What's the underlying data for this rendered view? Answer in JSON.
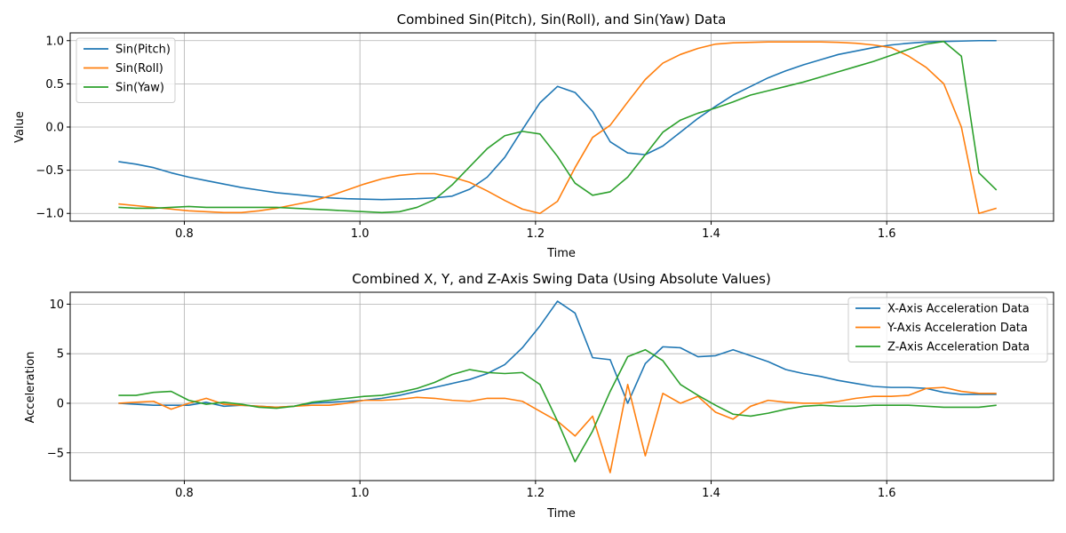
{
  "colors": {
    "blue": "#1f77b4",
    "orange": "#ff7f0e",
    "green": "#2ca02c"
  },
  "chart_data": [
    {
      "type": "line",
      "title": "Combined Sin(Pitch), Sin(Roll), and Sin(Yaw) Data",
      "xlabel": "Time",
      "ylabel": "Value",
      "xlim": [
        0.67,
        1.79
      ],
      "ylim": [
        -1.09,
        1.09
      ],
      "xticks": [
        0.8,
        1.0,
        1.2,
        1.4,
        1.6
      ],
      "xtick_labels": [
        "0.8",
        "1.0",
        "1.2",
        "1.4",
        "1.6"
      ],
      "yticks": [
        -1.0,
        -0.5,
        0.0,
        0.5,
        1.0
      ],
      "ytick_labels": [
        "−1.0",
        "−0.5",
        "0.0",
        "0.5",
        "1.0"
      ],
      "grid": true,
      "legend": "top-left",
      "x": [
        0.725,
        0.745,
        0.765,
        0.785,
        0.805,
        0.825,
        0.845,
        0.865,
        0.885,
        0.905,
        0.925,
        0.945,
        0.965,
        0.985,
        1.005,
        1.025,
        1.045,
        1.065,
        1.085,
        1.105,
        1.125,
        1.145,
        1.165,
        1.185,
        1.205,
        1.225,
        1.245,
        1.265,
        1.285,
        1.305,
        1.325,
        1.345,
        1.365,
        1.385,
        1.405,
        1.425,
        1.445,
        1.465,
        1.485,
        1.505,
        1.525,
        1.545,
        1.565,
        1.585,
        1.605,
        1.625,
        1.645,
        1.665,
        1.685,
        1.705,
        1.725
      ],
      "series": [
        {
          "name": "Sin(Pitch)",
          "color": "#1f77b4",
          "values": [
            -0.4,
            -0.43,
            -0.47,
            -0.53,
            -0.58,
            -0.62,
            -0.66,
            -0.7,
            -0.73,
            -0.76,
            -0.78,
            -0.8,
            -0.82,
            -0.83,
            -0.835,
            -0.84,
            -0.835,
            -0.83,
            -0.82,
            -0.8,
            -0.72,
            -0.58,
            -0.35,
            -0.03,
            0.28,
            0.47,
            0.4,
            0.18,
            -0.17,
            -0.3,
            -0.32,
            -0.22,
            -0.06,
            0.1,
            0.24,
            0.37,
            0.47,
            0.57,
            0.65,
            0.72,
            0.78,
            0.84,
            0.88,
            0.92,
            0.95,
            0.97,
            0.985,
            0.99,
            0.995,
            1.0,
            1.0
          ]
        },
        {
          "name": "Sin(Roll)",
          "color": "#ff7f0e",
          "values": [
            -0.89,
            -0.91,
            -0.93,
            -0.95,
            -0.97,
            -0.98,
            -0.99,
            -0.99,
            -0.97,
            -0.94,
            -0.9,
            -0.86,
            -0.8,
            -0.73,
            -0.66,
            -0.6,
            -0.56,
            -0.54,
            -0.54,
            -0.58,
            -0.64,
            -0.74,
            -0.85,
            -0.95,
            -1.0,
            -0.86,
            -0.47,
            -0.12,
            0.02,
            0.29,
            0.55,
            0.74,
            0.84,
            0.91,
            0.96,
            0.975,
            0.98,
            0.985,
            0.985,
            0.985,
            0.985,
            0.98,
            0.97,
            0.95,
            0.92,
            0.82,
            0.69,
            0.5,
            0.0,
            -1.0,
            -0.94
          ]
        },
        {
          "name": "Sin(Yaw)",
          "color": "#2ca02c",
          "values": [
            -0.93,
            -0.94,
            -0.94,
            -0.93,
            -0.92,
            -0.93,
            -0.93,
            -0.93,
            -0.93,
            -0.93,
            -0.94,
            -0.95,
            -0.96,
            -0.97,
            -0.98,
            -0.99,
            -0.98,
            -0.93,
            -0.84,
            -0.67,
            -0.46,
            -0.25,
            -0.1,
            -0.05,
            -0.08,
            -0.34,
            -0.65,
            -0.79,
            -0.75,
            -0.58,
            -0.32,
            -0.06,
            0.08,
            0.16,
            0.22,
            0.29,
            0.37,
            0.42,
            0.47,
            0.52,
            0.58,
            0.64,
            0.7,
            0.76,
            0.83,
            0.9,
            0.96,
            0.99,
            0.82,
            -0.53,
            -0.73
          ]
        }
      ]
    },
    {
      "type": "line",
      "title": "Combined X, Y, and Z-Axis Swing Data (Using Absolute Values)",
      "xlabel": "Time",
      "ylabel": "Acceleration",
      "xlim": [
        0.67,
        1.79
      ],
      "ylim": [
        -7.8,
        11.2
      ],
      "xticks": [
        0.8,
        1.0,
        1.2,
        1.4,
        1.6
      ],
      "xtick_labels": [
        "0.8",
        "1.0",
        "1.2",
        "1.4",
        "1.6"
      ],
      "yticks": [
        -5,
        0,
        5,
        10
      ],
      "ytick_labels": [
        "−5",
        "0",
        "5",
        "10"
      ],
      "grid": true,
      "legend": "top-right",
      "x": [
        0.725,
        0.745,
        0.765,
        0.785,
        0.805,
        0.825,
        0.845,
        0.865,
        0.885,
        0.905,
        0.925,
        0.945,
        0.965,
        0.985,
        1.005,
        1.025,
        1.045,
        1.065,
        1.085,
        1.105,
        1.125,
        1.145,
        1.165,
        1.185,
        1.205,
        1.225,
        1.245,
        1.265,
        1.285,
        1.305,
        1.325,
        1.345,
        1.365,
        1.385,
        1.405,
        1.425,
        1.445,
        1.465,
        1.485,
        1.505,
        1.525,
        1.545,
        1.565,
        1.585,
        1.605,
        1.625,
        1.645,
        1.665,
        1.685,
        1.705,
        1.725
      ],
      "series": [
        {
          "name": "X-Axis Acceleration Data",
          "color": "#1f77b4",
          "values": [
            0.0,
            -0.1,
            -0.2,
            -0.2,
            -0.2,
            0.1,
            -0.3,
            -0.2,
            -0.3,
            -0.4,
            -0.3,
            0.0,
            0.1,
            0.2,
            0.3,
            0.5,
            0.8,
            1.2,
            1.6,
            2.0,
            2.4,
            3.0,
            3.9,
            5.6,
            7.8,
            10.3,
            9.1,
            4.6,
            4.4,
            0.0,
            4.0,
            5.7,
            5.6,
            4.7,
            4.8,
            5.4,
            4.8,
            4.2,
            3.4,
            3.0,
            2.7,
            2.3,
            2.0,
            1.7,
            1.6,
            1.6,
            1.5,
            1.1,
            0.9,
            0.9,
            0.9
          ]
        },
        {
          "name": "Y-Axis Acceleration Data",
          "color": "#ff7f0e",
          "values": [
            0.0,
            0.1,
            0.2,
            -0.6,
            0.0,
            0.5,
            -0.1,
            -0.2,
            -0.3,
            -0.4,
            -0.3,
            -0.2,
            -0.2,
            0.0,
            0.3,
            0.3,
            0.4,
            0.6,
            0.5,
            0.3,
            0.2,
            0.5,
            0.5,
            0.2,
            -0.8,
            -1.8,
            -3.3,
            -1.3,
            -7.0,
            1.9,
            -5.3,
            1.0,
            0.0,
            0.7,
            -0.9,
            -1.6,
            -0.3,
            0.3,
            0.1,
            0.0,
            0.0,
            0.2,
            0.5,
            0.7,
            0.7,
            0.8,
            1.5,
            1.6,
            1.2,
            1.0,
            1.0
          ]
        },
        {
          "name": "Z-Axis Acceleration Data",
          "color": "#2ca02c",
          "values": [
            0.8,
            0.8,
            1.1,
            1.2,
            0.3,
            -0.1,
            0.1,
            -0.1,
            -0.4,
            -0.5,
            -0.3,
            0.1,
            0.3,
            0.5,
            0.7,
            0.8,
            1.1,
            1.5,
            2.1,
            2.9,
            3.4,
            3.1,
            3.0,
            3.1,
            1.9,
            -1.8,
            -5.9,
            -2.8,
            1.2,
            4.7,
            5.4,
            4.3,
            1.9,
            0.8,
            -0.2,
            -1.1,
            -1.3,
            -1.0,
            -0.6,
            -0.3,
            -0.2,
            -0.3,
            -0.3,
            -0.2,
            -0.2,
            -0.2,
            -0.3,
            -0.4,
            -0.4,
            -0.4,
            -0.2
          ]
        }
      ]
    }
  ]
}
